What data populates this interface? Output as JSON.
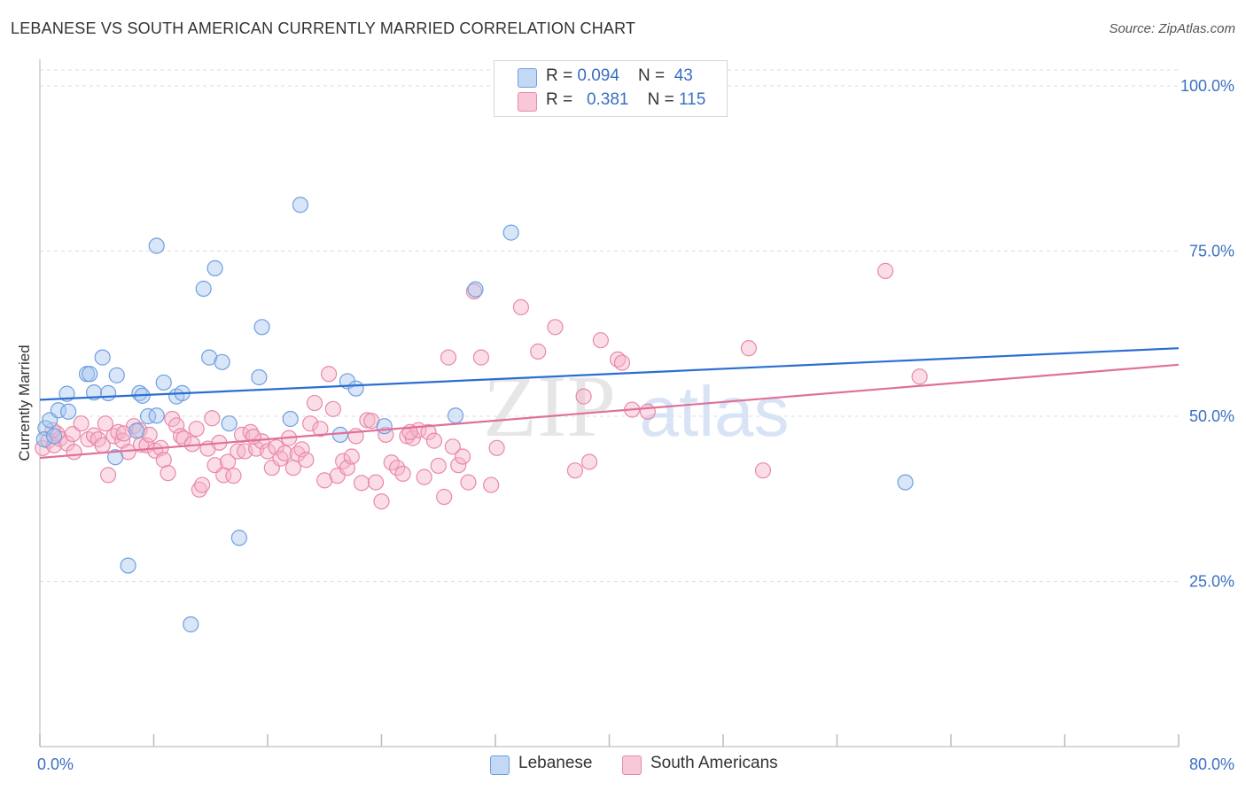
{
  "title": "LEBANESE VS SOUTH AMERICAN CURRENTLY MARRIED CORRELATION CHART",
  "source": "Source: ZipAtlas.com",
  "watermark": {
    "zip": "ZIP",
    "atlas": "atlas"
  },
  "colors": {
    "blue": "#a9c8f0",
    "blue_edge": "#6f9fe0",
    "blue_line": "#2a6fd1",
    "pink": "#f6b3c9",
    "pink_edge": "#e889a9",
    "pink_line": "#e0709a",
    "tick_text": "#3a6fc4",
    "grid": "#dddddd"
  },
  "legend": {
    "rows": [
      {
        "r_label": "R = ",
        "r_value": "0.094",
        "n_label": "N = ",
        "n_value": "43"
      },
      {
        "r_label": "R = ",
        "r_value": "0.381",
        "n_label": "N = ",
        "n_value": "115"
      }
    ]
  },
  "bottom_legend": [
    {
      "label": "Lebanese",
      "icon": "blue-square-icon"
    },
    {
      "label": "South Americans",
      "icon": "pink-square-icon"
    }
  ],
  "chart_data": {
    "type": "scatter",
    "title": "LEBANESE VS SOUTH AMERICAN CURRENTLY MARRIED CORRELATION CHART",
    "xlabel": "",
    "ylabel": "Currently Married",
    "xlim": [
      0,
      80
    ],
    "ylim": [
      0,
      100
    ],
    "x_tick_labels": [
      "0.0%",
      "80.0%"
    ],
    "y_ticks": [
      {
        "value": 100,
        "label": "100.0%"
      },
      {
        "value": 75,
        "label": "75.0%"
      },
      {
        "value": 50,
        "label": "50.0%"
      },
      {
        "value": 25,
        "label": "25.0%"
      }
    ],
    "grid": true,
    "series": [
      {
        "name": "Lebanese",
        "r": 0.094,
        "n": 43,
        "trend": {
          "x": [
            0,
            80
          ],
          "y": [
            52.5,
            60.3
          ]
        },
        "points": [
          [
            0.4,
            48.2
          ],
          [
            0.7,
            49.4
          ],
          [
            1.3,
            50.9
          ],
          [
            1.9,
            53.4
          ],
          [
            2.0,
            50.7
          ],
          [
            3.3,
            56.4
          ],
          [
            3.5,
            56.4
          ],
          [
            3.8,
            53.6
          ],
          [
            4.4,
            58.9
          ],
          [
            4.8,
            53.5
          ],
          [
            5.4,
            56.2
          ],
          [
            5.3,
            43.8
          ],
          [
            6.2,
            27.4
          ],
          [
            6.8,
            47.8
          ],
          [
            7.0,
            53.5
          ],
          [
            7.2,
            53.1
          ],
          [
            7.6,
            50.0
          ],
          [
            8.2,
            50.1
          ],
          [
            8.2,
            75.8
          ],
          [
            8.7,
            55.1
          ],
          [
            9.6,
            53.0
          ],
          [
            10.0,
            53.5
          ],
          [
            10.6,
            18.5
          ],
          [
            11.5,
            69.3
          ],
          [
            11.9,
            58.9
          ],
          [
            12.3,
            72.4
          ],
          [
            12.8,
            58.2
          ],
          [
            13.3,
            48.9
          ],
          [
            14.0,
            31.6
          ],
          [
            15.4,
            55.9
          ],
          [
            15.6,
            63.5
          ],
          [
            17.6,
            49.6
          ],
          [
            18.3,
            82.0
          ],
          [
            21.1,
            47.2
          ],
          [
            21.6,
            55.3
          ],
          [
            22.2,
            54.2
          ],
          [
            24.2,
            48.5
          ],
          [
            29.2,
            50.1
          ],
          [
            30.6,
            69.2
          ],
          [
            33.1,
            77.8
          ],
          [
            60.8,
            40.0
          ],
          [
            0.3,
            46.5
          ],
          [
            1.0,
            47.0
          ]
        ]
      },
      {
        "name": "South Americans",
        "r": 0.381,
        "n": 115,
        "trend": {
          "x": [
            0,
            80
          ],
          "y": [
            43.7,
            57.8
          ]
        },
        "points": [
          [
            0.2,
            45.2
          ],
          [
            0.6,
            46.3
          ],
          [
            1.0,
            45.6
          ],
          [
            1.2,
            47.4
          ],
          [
            1.4,
            46.6
          ],
          [
            1.9,
            45.9
          ],
          [
            2.3,
            47.3
          ],
          [
            2.4,
            44.6
          ],
          [
            2.9,
            48.9
          ],
          [
            3.4,
            46.5
          ],
          [
            3.8,
            47.1
          ],
          [
            4.1,
            46.5
          ],
          [
            4.4,
            45.6
          ],
          [
            4.6,
            48.9
          ],
          [
            4.8,
            41.1
          ],
          [
            5.2,
            47.0
          ],
          [
            5.5,
            47.6
          ],
          [
            5.8,
            46.3
          ],
          [
            6.2,
            44.6
          ],
          [
            6.6,
            48.5
          ],
          [
            7.0,
            47.9
          ],
          [
            7.1,
            45.7
          ],
          [
            7.5,
            45.6
          ],
          [
            7.7,
            47.2
          ],
          [
            8.1,
            44.8
          ],
          [
            8.5,
            45.2
          ],
          [
            8.7,
            43.4
          ],
          [
            9.0,
            41.4
          ],
          [
            9.3,
            49.6
          ],
          [
            9.6,
            48.6
          ],
          [
            9.9,
            47.0
          ],
          [
            10.1,
            46.6
          ],
          [
            10.7,
            45.8
          ],
          [
            11.0,
            48.1
          ],
          [
            11.2,
            38.9
          ],
          [
            11.4,
            39.6
          ],
          [
            11.8,
            45.1
          ],
          [
            12.1,
            49.7
          ],
          [
            12.3,
            42.6
          ],
          [
            12.6,
            46.0
          ],
          [
            12.9,
            41.1
          ],
          [
            13.2,
            43.1
          ],
          [
            13.6,
            41.0
          ],
          [
            13.9,
            44.7
          ],
          [
            14.2,
            47.2
          ],
          [
            14.4,
            44.7
          ],
          [
            14.8,
            47.6
          ],
          [
            15.2,
            45.1
          ],
          [
            15.6,
            46.2
          ],
          [
            16.0,
            44.7
          ],
          [
            16.3,
            42.2
          ],
          [
            16.6,
            45.3
          ],
          [
            16.9,
            43.6
          ],
          [
            17.2,
            44.4
          ],
          [
            17.5,
            46.7
          ],
          [
            17.8,
            42.2
          ],
          [
            18.1,
            44.3
          ],
          [
            18.4,
            45.0
          ],
          [
            18.7,
            43.4
          ],
          [
            19.0,
            48.9
          ],
          [
            19.3,
            52.0
          ],
          [
            19.7,
            48.1
          ],
          [
            20.0,
            40.3
          ],
          [
            20.3,
            56.4
          ],
          [
            20.6,
            51.1
          ],
          [
            20.9,
            41.0
          ],
          [
            21.3,
            43.2
          ],
          [
            21.6,
            42.2
          ],
          [
            21.9,
            43.9
          ],
          [
            22.2,
            47.0
          ],
          [
            22.6,
            39.9
          ],
          [
            23.0,
            49.4
          ],
          [
            23.3,
            49.3
          ],
          [
            23.6,
            40.0
          ],
          [
            24.0,
            37.1
          ],
          [
            24.3,
            47.2
          ],
          [
            24.7,
            43.0
          ],
          [
            25.1,
            42.2
          ],
          [
            25.5,
            41.3
          ],
          [
            25.8,
            47.0
          ],
          [
            26.2,
            46.7
          ],
          [
            26.6,
            47.9
          ],
          [
            27.0,
            40.8
          ],
          [
            27.3,
            47.6
          ],
          [
            27.7,
            46.3
          ],
          [
            28.0,
            42.5
          ],
          [
            28.4,
            37.8
          ],
          [
            28.7,
            58.9
          ],
          [
            29.0,
            45.4
          ],
          [
            29.4,
            42.6
          ],
          [
            29.7,
            43.9
          ],
          [
            30.1,
            40.0
          ],
          [
            30.5,
            68.9
          ],
          [
            31.0,
            58.9
          ],
          [
            31.7,
            39.6
          ],
          [
            32.1,
            45.2
          ],
          [
            33.8,
            66.5
          ],
          [
            35.0,
            59.8
          ],
          [
            36.2,
            63.5
          ],
          [
            37.6,
            41.8
          ],
          [
            38.2,
            53.0
          ],
          [
            38.6,
            43.1
          ],
          [
            39.4,
            61.5
          ],
          [
            40.6,
            58.6
          ],
          [
            40.9,
            58.1
          ],
          [
            41.6,
            51.0
          ],
          [
            42.7,
            50.7
          ],
          [
            49.8,
            60.3
          ],
          [
            50.8,
            41.8
          ],
          [
            59.4,
            72.0
          ],
          [
            61.8,
            56.0
          ],
          [
            0.9,
            47.9
          ],
          [
            5.9,
            47.4
          ],
          [
            15.0,
            46.9
          ],
          [
            26.0,
            47.6
          ]
        ]
      }
    ]
  }
}
